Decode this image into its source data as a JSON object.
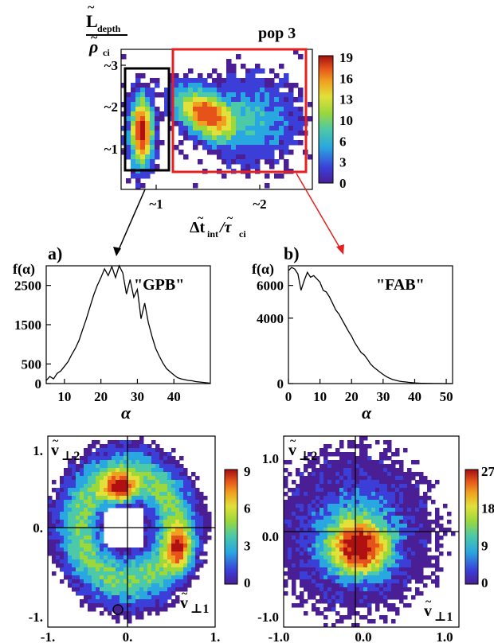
{
  "figure": {
    "top_title": "pop 3",
    "top_ylabel_main": "L",
    "top_ylabel_sub": "depth",
    "top_ylabel_den": "ρ",
    "top_ylabel_den_sub": "ci",
    "top_xlabel_main": "Δt",
    "top_xlabel_sub": "int",
    "top_xlabel_den": "/τ",
    "top_xlabel_den_sub": "ci",
    "panel_a_label": "a)",
    "panel_b_label": "b)",
    "fa_label": "f(α)",
    "fb_label": "f(α)",
    "alpha_label_a": "α",
    "alpha_label_b": "α",
    "gpb_label": "\"GPB\"",
    "fab_label": "\"FAB\"",
    "v_perp2": "v",
    "v_perp2_sub": "⊥2",
    "v_perp1": "v",
    "v_perp1_sub": "⊥1"
  },
  "colors": {
    "cmap": [
      "#ffffff",
      "#6a2da8",
      "#3b3fd8",
      "#29a7e0",
      "#4cc9a8",
      "#7dd94a",
      "#d8e23a",
      "#f0a020",
      "#e5531a",
      "#b01010"
    ],
    "red_box": "#e52020",
    "arrow_red": "#e52020"
  },
  "chart_data": [
    {
      "id": "top-histogram",
      "type": "heatmap",
      "title": "pop 3",
      "xticks": [
        "~1",
        "~2"
      ],
      "yticks": [
        "~1",
        "~2",
        "~3"
      ],
      "colorbar_ticks": [
        "19",
        "16",
        "13",
        "10",
        "6",
        "3",
        "0"
      ],
      "colorbar_range": [
        0,
        19
      ],
      "boxes": [
        "GPB region (black)",
        "FAB region (red)"
      ]
    },
    {
      "id": "panel-a",
      "type": "line",
      "xlim": [
        5,
        50
      ],
      "ylim": [
        0,
        3000
      ],
      "xticks": [
        "10",
        "20",
        "30",
        "40"
      ],
      "yticks": [
        "0",
        "500",
        "1500",
        "2500"
      ],
      "x": [
        5,
        6,
        7,
        8,
        9,
        10,
        11,
        12,
        13,
        14,
        15,
        16,
        17,
        18,
        19,
        20,
        21,
        22,
        23,
        24,
        25,
        26,
        27,
        28,
        29,
        30,
        31,
        32,
        33,
        34,
        35,
        36,
        37,
        38,
        39,
        40,
        41,
        42,
        43,
        44,
        45,
        46,
        47,
        48,
        49,
        50
      ],
      "y": [
        80,
        180,
        120,
        260,
        320,
        440,
        560,
        740,
        900,
        1100,
        1380,
        1650,
        1950,
        2250,
        2500,
        2700,
        2920,
        2750,
        2980,
        2700,
        3000,
        2820,
        2280,
        2650,
        2200,
        2400,
        1650,
        2050,
        1550,
        1200,
        900,
        700,
        520,
        380,
        300,
        220,
        150,
        120,
        100,
        80,
        70,
        50,
        40,
        30,
        20,
        10
      ]
    },
    {
      "id": "panel-b",
      "type": "line",
      "xlim": [
        0,
        52
      ],
      "ylim": [
        0,
        7200
      ],
      "xticks": [
        "0",
        "10",
        "20",
        "30",
        "40",
        "50"
      ],
      "yticks": [
        "0",
        "4000",
        "6000"
      ],
      "x": [
        0,
        1,
        2,
        3,
        4,
        5,
        6,
        7,
        8,
        9,
        10,
        11,
        12,
        13,
        14,
        15,
        16,
        17,
        18,
        19,
        20,
        21,
        22,
        23,
        24,
        25,
        26,
        27,
        28,
        29,
        30,
        31,
        32,
        33,
        34,
        35,
        36,
        37,
        38,
        39,
        40,
        41,
        42,
        43,
        44,
        45,
        46,
        47,
        48,
        49,
        50,
        51,
        52
      ],
      "y": [
        6900,
        7100,
        7000,
        6700,
        5700,
        6300,
        6800,
        6500,
        6600,
        6400,
        6200,
        5700,
        5600,
        5300,
        4900,
        4500,
        4250,
        3900,
        3550,
        3200,
        2900,
        2500,
        2200,
        1900,
        1750,
        1500,
        1200,
        1000,
        850,
        700,
        560,
        430,
        330,
        250,
        200,
        150,
        120,
        100,
        80,
        60,
        40,
        30,
        20,
        15,
        10,
        8,
        5,
        4,
        3,
        2,
        1,
        1,
        0
      ]
    },
    {
      "id": "panel-c",
      "type": "heatmap",
      "xticks": [
        "-1.",
        "0.",
        "1."
      ],
      "yticks": [
        "-1.",
        "0.",
        "1."
      ],
      "colorbar_ticks": [
        "9",
        "6",
        "3",
        "0"
      ],
      "colorbar_range": [
        0,
        9
      ]
    },
    {
      "id": "panel-d",
      "type": "heatmap",
      "xticks": [
        "-1.0",
        "0.0",
        "1.0"
      ],
      "yticks": [
        "-1.0",
        "0.0",
        "1.0"
      ],
      "colorbar_ticks": [
        "27",
        "18",
        "9",
        "0"
      ],
      "colorbar_range": [
        0,
        27
      ]
    }
  ]
}
